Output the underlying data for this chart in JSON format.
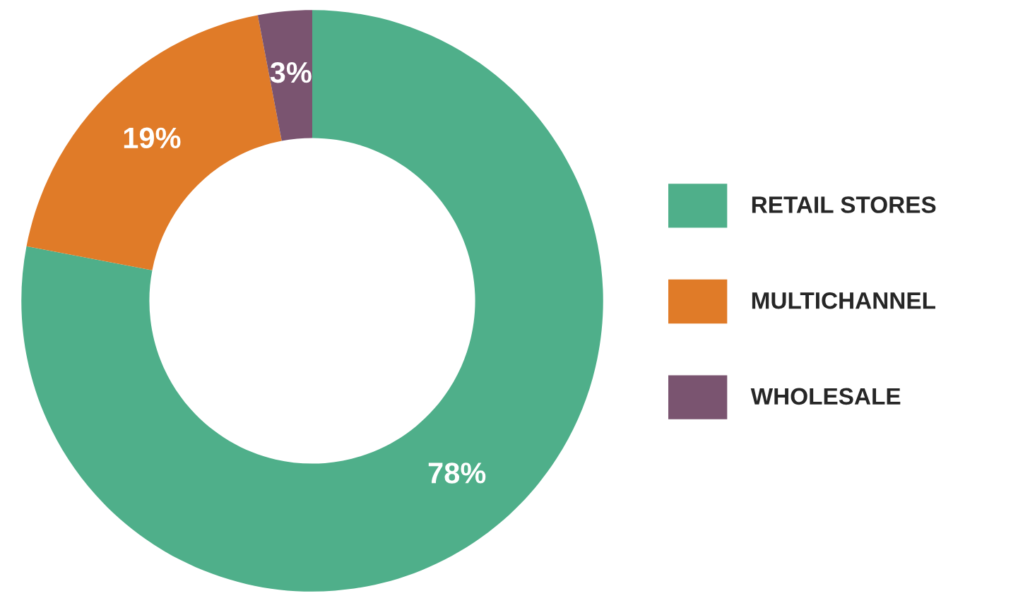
{
  "chart_data": {
    "type": "donut",
    "categories": [
      "RETAIL STORES",
      "MULTICHANNEL",
      "WHOLESALE"
    ],
    "values": [
      78,
      19,
      3
    ],
    "colors": [
      "#4faf8a",
      "#e07b28",
      "#7a5470"
    ],
    "value_labels": [
      "78%",
      "19%",
      "3%"
    ],
    "legend": "right"
  }
}
